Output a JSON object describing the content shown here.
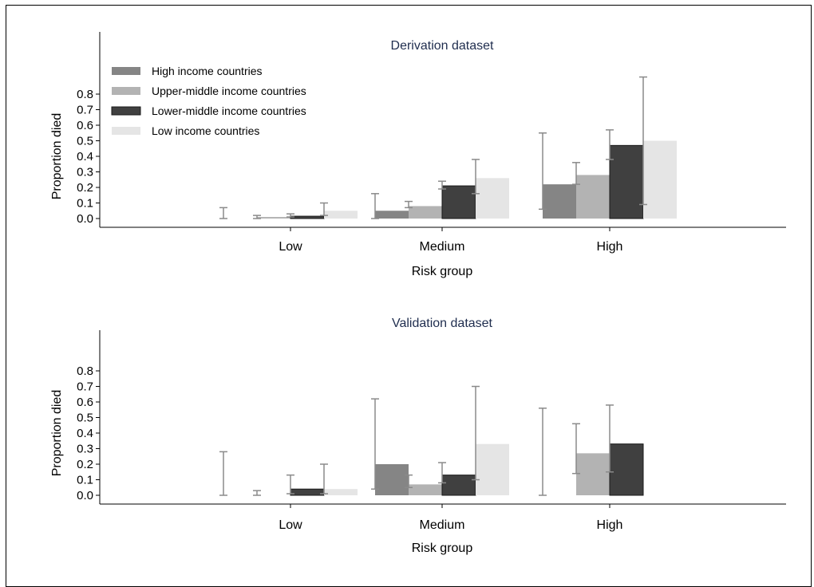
{
  "chart_data": [
    {
      "type": "bar",
      "title": "Derivation dataset",
      "xlabel": "Risk group",
      "ylabel": "Proportion died",
      "categories": [
        "Low",
        "Medium",
        "High"
      ],
      "yticks": [
        "0.0",
        "0.1",
        "0.2",
        "0.3",
        "0.4",
        "0.5",
        "0.6",
        "0.7",
        "0.8"
      ],
      "ylim": [
        0,
        0.97
      ],
      "legend_position": "top-left",
      "series": [
        {
          "name": "High income countries",
          "color": "#858585",
          "values": [
            0,
            0.05,
            0.22
          ],
          "ci_low": [
            0,
            0,
            0.06
          ],
          "ci_high": [
            0.07,
            0.16,
            0.55
          ]
        },
        {
          "name": "Upper-middle income countries",
          "color": "#b3b3b3",
          "values": [
            0.01,
            0.08,
            0.28
          ],
          "ci_low": [
            0,
            0.07,
            0.22
          ],
          "ci_high": [
            0.02,
            0.11,
            0.36
          ]
        },
        {
          "name": "Lower-middle income countries",
          "color": "#404040",
          "values": [
            0.015,
            0.21,
            0.47
          ],
          "ci_low": [
            0.01,
            0.19,
            0.38
          ],
          "ci_high": [
            0.03,
            0.24,
            0.57
          ]
        },
        {
          "name": "Low income countries",
          "color": "#e5e5e5",
          "values": [
            0.05,
            0.26,
            0.5
          ],
          "ci_low": [
            0.02,
            0.16,
            0.09
          ],
          "ci_high": [
            0.1,
            0.38,
            0.91
          ]
        }
      ]
    },
    {
      "type": "bar",
      "title": "Validation dataset",
      "xlabel": "Risk group",
      "ylabel": "Proportion died",
      "categories": [
        "Low",
        "Medium",
        "High"
      ],
      "yticks": [
        "0.0",
        "0.1",
        "0.2",
        "0.3",
        "0.4",
        "0.5",
        "0.6",
        "0.7",
        "0.8"
      ],
      "ylim": [
        0,
        1.05
      ],
      "series": [
        {
          "name": "High income countries",
          "color": "#858585",
          "values": [
            0,
            0.2,
            0
          ],
          "ci_low": [
            0,
            0.04,
            0
          ],
          "ci_high": [
            0.28,
            0.62,
            0.56
          ]
        },
        {
          "name": "Upper-middle income countries",
          "color": "#b3b3b3",
          "values": [
            0,
            0.07,
            0.27
          ],
          "ci_low": [
            0,
            0.05,
            0.14
          ],
          "ci_high": [
            0.03,
            0.13,
            0.46
          ]
        },
        {
          "name": "Lower-middle income countries",
          "color": "#404040",
          "values": [
            0.04,
            0.13,
            0.33
          ],
          "ci_low": [
            0.01,
            0.08,
            0.15
          ],
          "ci_high": [
            0.13,
            0.21,
            0.58
          ]
        },
        {
          "name": "Low income countries",
          "color": "#e5e5e5",
          "values": [
            0.04,
            0.33,
            null
          ],
          "ci_low": [
            0.01,
            0.1,
            null
          ],
          "ci_high": [
            0.2,
            0.7,
            null
          ]
        }
      ]
    }
  ]
}
